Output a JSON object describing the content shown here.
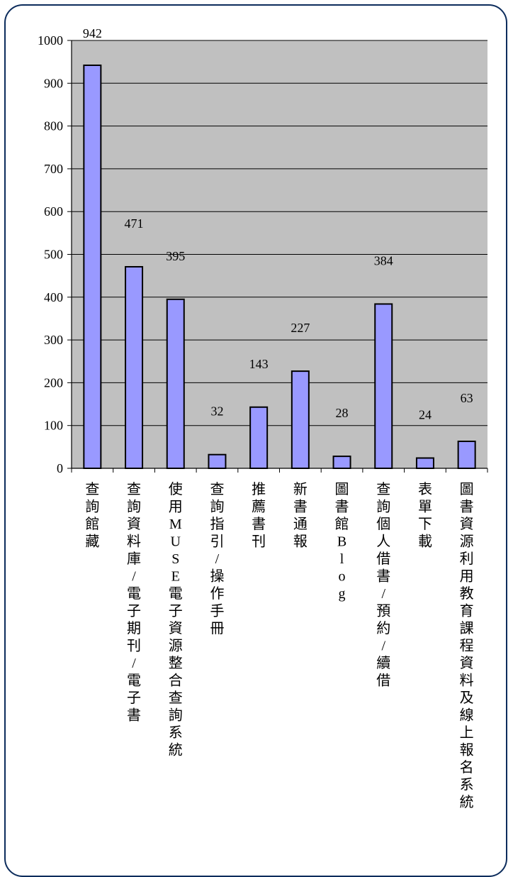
{
  "chart_data": {
    "type": "bar",
    "title": "",
    "xlabel": "",
    "ylabel": "",
    "ylim": [
      0,
      1000
    ],
    "yticks": [
      0,
      100,
      200,
      300,
      400,
      500,
      600,
      700,
      800,
      900,
      1000
    ],
    "grid": true,
    "legend": "none",
    "categories": [
      "查詢館藏",
      "查詢資料庫/電子期刊/電子書",
      "使用MUSE電子資源整合查詢系統",
      "查詢指引/操作手冊",
      "推薦書刊",
      "新書通報",
      "圖書館Blog",
      "查詢個人借書/預約/續借",
      "表單下載",
      "圖書資源利用教育課程資料及線上報名系統"
    ],
    "values": [
      942,
      471,
      395,
      32,
      143,
      227,
      28,
      384,
      24,
      63
    ],
    "colors": {
      "plot_bg": "#c0c0c0",
      "bar": "#9999ff",
      "bar_border": "#000000",
      "frame": "#0c2c5c"
    }
  }
}
